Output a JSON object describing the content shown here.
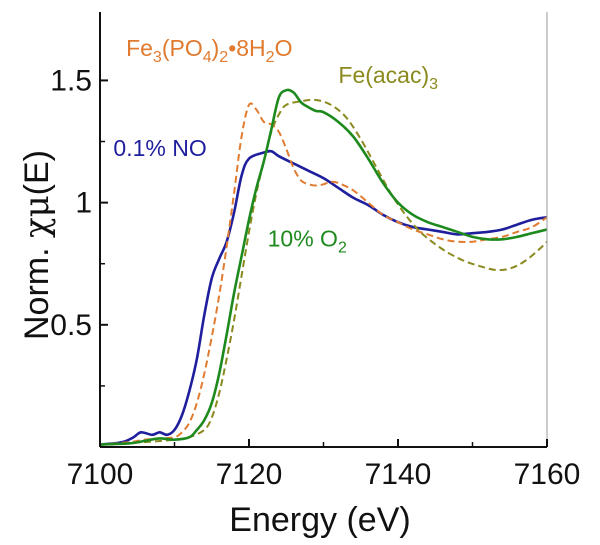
{
  "chart_data": {
    "type": "line",
    "title": "",
    "xlabel": "Energy (eV)",
    "ylabel_prefix": "Norm. ",
    "ylabel_chi": "χ",
    "ylabel_mu": "μ",
    "ylabel_suffix": "(E)",
    "xlim": [
      7100,
      7160
    ],
    "ylim": [
      0,
      1.78
    ],
    "xticks": [
      7100,
      7120,
      7140,
      7160
    ],
    "xtick_labels": [
      "7100",
      "7120",
      "7140",
      "7160"
    ],
    "yticks": [
      0.5,
      1,
      1.5
    ],
    "ytick_labels": [
      "0.5",
      "1",
      "1.5"
    ],
    "grid": false,
    "legend": "none (inline labels)",
    "series": [
      {
        "label_parts": [
          {
            "t": "0.1% NO",
            "s": ""
          }
        ],
        "color": "#1f1f9e",
        "dashed": false,
        "label_x": 7101.8,
        "label_y": 1.19,
        "points": [
          [
            7100,
            0.01
          ],
          [
            7103,
            0.02
          ],
          [
            7104.5,
            0.04
          ],
          [
            7105.5,
            0.06
          ],
          [
            7107,
            0.05
          ],
          [
            7108,
            0.06
          ],
          [
            7109,
            0.05
          ],
          [
            7110,
            0.07
          ],
          [
            7111,
            0.13
          ],
          [
            7112,
            0.23
          ],
          [
            7113,
            0.36
          ],
          [
            7114,
            0.54
          ],
          [
            7115,
            0.69
          ],
          [
            7116,
            0.77
          ],
          [
            7117,
            0.84
          ],
          [
            7118,
            0.96
          ],
          [
            7119,
            1.11
          ],
          [
            7120,
            1.18
          ],
          [
            7122,
            1.205
          ],
          [
            7123,
            1.21
          ],
          [
            7124,
            1.19
          ],
          [
            7126,
            1.16
          ],
          [
            7128,
            1.13
          ],
          [
            7130,
            1.1
          ],
          [
            7132,
            1.06
          ],
          [
            7134,
            1.02
          ],
          [
            7136,
            0.99
          ],
          [
            7138,
            0.95
          ],
          [
            7140,
            0.92
          ],
          [
            7142,
            0.9
          ],
          [
            7144,
            0.89
          ],
          [
            7146,
            0.88
          ],
          [
            7148,
            0.87
          ],
          [
            7150,
            0.875
          ],
          [
            7152,
            0.88
          ],
          [
            7154,
            0.89
          ],
          [
            7156,
            0.91
          ],
          [
            7158,
            0.93
          ],
          [
            7160,
            0.94
          ]
        ]
      },
      {
        "label_parts": [
          {
            "t": "Fe",
            "s": ""
          },
          {
            "t": "3",
            "s": "sub"
          },
          {
            "t": "(PO",
            "s": ""
          },
          {
            "t": "4",
            "s": "sub"
          },
          {
            "t": ")",
            "s": ""
          },
          {
            "t": "2",
            "s": "sub"
          },
          {
            "t": "•8H",
            "s": ""
          },
          {
            "t": "2",
            "s": "sub"
          },
          {
            "t": "O",
            "s": ""
          }
        ],
        "color": "#e07b30",
        "dashed": true,
        "label_x": 7103.5,
        "label_y": 1.6,
        "points": [
          [
            7100,
            0.01
          ],
          [
            7104,
            0.02
          ],
          [
            7106,
            0.03
          ],
          [
            7108,
            0.035
          ],
          [
            7110,
            0.04
          ],
          [
            7111,
            0.06
          ],
          [
            7112,
            0.1
          ],
          [
            7113,
            0.18
          ],
          [
            7114,
            0.3
          ],
          [
            7115,
            0.45
          ],
          [
            7116,
            0.62
          ],
          [
            7117,
            0.82
          ],
          [
            7118,
            1.04
          ],
          [
            7119,
            1.27
          ],
          [
            7120,
            1.4
          ],
          [
            7121,
            1.38
          ],
          [
            7122,
            1.33
          ],
          [
            7123,
            1.32
          ],
          [
            7124,
            1.29
          ],
          [
            7125,
            1.22
          ],
          [
            7126,
            1.14
          ],
          [
            7127,
            1.09
          ],
          [
            7128,
            1.075
          ],
          [
            7129,
            1.07
          ],
          [
            7130,
            1.075
          ],
          [
            7131,
            1.085
          ],
          [
            7132,
            1.08
          ],
          [
            7134,
            1.05
          ],
          [
            7136,
            1.0
          ],
          [
            7138,
            0.95
          ],
          [
            7140,
            0.92
          ],
          [
            7142,
            0.89
          ],
          [
            7144,
            0.87
          ],
          [
            7146,
            0.85
          ],
          [
            7148,
            0.84
          ],
          [
            7150,
            0.84
          ],
          [
            7152,
            0.85
          ],
          [
            7154,
            0.86
          ],
          [
            7156,
            0.88
          ],
          [
            7158,
            0.9
          ],
          [
            7160,
            0.94
          ]
        ]
      },
      {
        "label_parts": [
          {
            "t": "Fe(acac)",
            "s": ""
          },
          {
            "t": "3",
            "s": "sub"
          }
        ],
        "color": "#8a8a1e",
        "dashed": true,
        "label_x": 7132,
        "label_y": 1.49,
        "points": [
          [
            7100,
            0.01
          ],
          [
            7106,
            0.02
          ],
          [
            7110,
            0.03
          ],
          [
            7112,
            0.04
          ],
          [
            7114,
            0.07
          ],
          [
            7115,
            0.12
          ],
          [
            7116,
            0.22
          ],
          [
            7117,
            0.36
          ],
          [
            7118,
            0.52
          ],
          [
            7119,
            0.7
          ],
          [
            7120,
            0.88
          ],
          [
            7121,
            1.04
          ],
          [
            7122,
            1.17
          ],
          [
            7123,
            1.29
          ],
          [
            7124,
            1.36
          ],
          [
            7125,
            1.4
          ],
          [
            7127,
            1.415
          ],
          [
            7129,
            1.42
          ],
          [
            7131,
            1.4
          ],
          [
            7133,
            1.35
          ],
          [
            7135,
            1.26
          ],
          [
            7137,
            1.15
          ],
          [
            7139,
            1.04
          ],
          [
            7141,
            0.95
          ],
          [
            7143,
            0.88
          ],
          [
            7145,
            0.83
          ],
          [
            7147,
            0.79
          ],
          [
            7149,
            0.76
          ],
          [
            7151,
            0.74
          ],
          [
            7153,
            0.725
          ],
          [
            7155,
            0.73
          ],
          [
            7157,
            0.76
          ],
          [
            7159,
            0.81
          ],
          [
            7160,
            0.84
          ]
        ]
      },
      {
        "label_parts": [
          {
            "t": "10% O",
            "s": ""
          },
          {
            "t": "2",
            "s": "sub"
          }
        ],
        "color": "#1e8a1e",
        "dashed": false,
        "label_x": 7122.5,
        "label_y": 0.82,
        "points": [
          [
            7100,
            0.01
          ],
          [
            7104,
            0.015
          ],
          [
            7106,
            0.025
          ],
          [
            7108,
            0.035
          ],
          [
            7110,
            0.03
          ],
          [
            7112,
            0.04
          ],
          [
            7113,
            0.07
          ],
          [
            7114,
            0.11
          ],
          [
            7115,
            0.18
          ],
          [
            7116,
            0.3
          ],
          [
            7117,
            0.46
          ],
          [
            7118,
            0.63
          ],
          [
            7119,
            0.78
          ],
          [
            7120,
            0.93
          ],
          [
            7121,
            1.06
          ],
          [
            7122,
            1.17
          ],
          [
            7123,
            1.3
          ],
          [
            7124,
            1.43
          ],
          [
            7125,
            1.46
          ],
          [
            7126,
            1.45
          ],
          [
            7127,
            1.41
          ],
          [
            7128,
            1.39
          ],
          [
            7129,
            1.375
          ],
          [
            7130,
            1.37
          ],
          [
            7132,
            1.33
          ],
          [
            7134,
            1.27
          ],
          [
            7136,
            1.18
          ],
          [
            7138,
            1.08
          ],
          [
            7140,
            1.0
          ],
          [
            7142,
            0.95
          ],
          [
            7144,
            0.92
          ],
          [
            7146,
            0.9
          ],
          [
            7148,
            0.88
          ],
          [
            7150,
            0.86
          ],
          [
            7152,
            0.85
          ],
          [
            7154,
            0.85
          ],
          [
            7156,
            0.86
          ],
          [
            7158,
            0.875
          ],
          [
            7160,
            0.89
          ]
        ]
      }
    ]
  }
}
